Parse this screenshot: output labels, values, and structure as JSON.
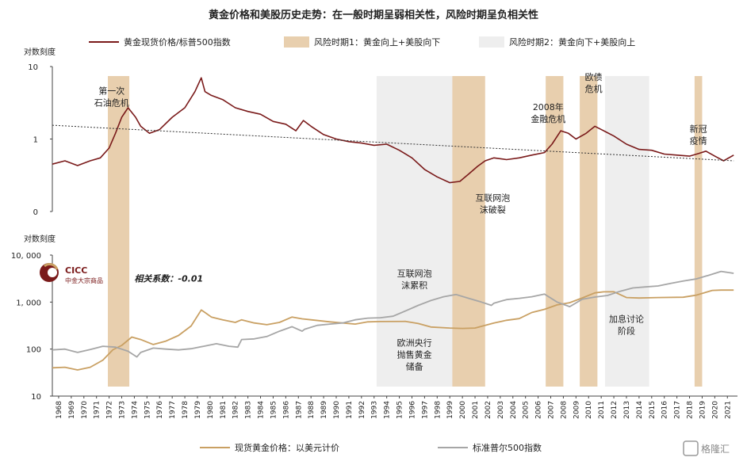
{
  "title": "黄金价格和美股历史走势：在一般时期呈弱相关性，风险时期呈负相关性",
  "watermark": "格隆汇",
  "logo": {
    "text": "CICC",
    "subtext": "中金大宗商品"
  },
  "colors": {
    "ratio": "#7a1a1a",
    "gold": "#c9a063",
    "sp500": "#a6a6a6",
    "period1": "#e8cfae",
    "period2": "#eeeeee",
    "trend": "#333333"
  },
  "legend_top": {
    "ratio": "黄金现货价格/标普500指数",
    "period1": "风险时期1：黄金向上+美股向下",
    "period2": "风险时期2：黄金向下+美股向上"
  },
  "legend_bottom": {
    "gold": "现货黄金价格：以美元计价",
    "sp500": "标准普尔500指数"
  },
  "chart_data": [
    {
      "type": "line",
      "panel": "top",
      "ylabel": "对数刻度",
      "yscale": "log",
      "ylim": [
        0.1,
        10
      ],
      "yticks": [
        {
          "v": 10,
          "label": "10"
        },
        {
          "v": 1,
          "label": "1"
        },
        {
          "v": 0.1,
          "label": "0"
        }
      ],
      "xlim": [
        1968,
        2022.3
      ],
      "series": [
        {
          "name": "黄金现货价格/标普500指数",
          "x": [
            1968,
            1969,
            1970,
            1971,
            1971.8,
            1972.5,
            1973,
            1973.5,
            1974,
            1974.6,
            1975,
            1975.7,
            1976.5,
            1977.5,
            1978.5,
            1979.3,
            1979.8,
            1980.1,
            1980.6,
            1981.5,
            1982.5,
            1983.5,
            1984.5,
            1985.5,
            1986.5,
            1987.3,
            1987.9,
            1988.5,
            1989.5,
            1990.5,
            1991.5,
            1992.5,
            1993.5,
            1994.5,
            1995.5,
            1996.5,
            1997.5,
            1998.5,
            1999.5,
            2000.3,
            2001,
            2001.7,
            2002.3,
            2003,
            2004,
            2005,
            2006,
            2007,
            2007.6,
            2008.3,
            2008.9,
            2009.5,
            2010.3,
            2011,
            2011.7,
            2012.5,
            2013.5,
            2014.5,
            2015.5,
            2016.5,
            2017.5,
            2018.5,
            2019.2,
            2019.8,
            2020.5,
            2021.2,
            2022
          ],
          "y": [
            0.45,
            0.5,
            0.43,
            0.5,
            0.55,
            0.75,
            1.2,
            2.0,
            2.7,
            2.0,
            1.5,
            1.2,
            1.35,
            2.0,
            2.7,
            4.5,
            7.0,
            4.5,
            4.0,
            3.5,
            2.7,
            2.4,
            2.2,
            1.75,
            1.6,
            1.3,
            1.8,
            1.5,
            1.15,
            1.0,
            0.92,
            0.88,
            0.82,
            0.85,
            0.7,
            0.55,
            0.38,
            0.3,
            0.25,
            0.26,
            0.33,
            0.42,
            0.5,
            0.55,
            0.52,
            0.55,
            0.6,
            0.65,
            0.85,
            1.3,
            1.2,
            1.0,
            1.2,
            1.5,
            1.3,
            1.1,
            0.85,
            0.72,
            0.7,
            0.62,
            0.6,
            0.58,
            0.63,
            0.68,
            0.58,
            0.5,
            0.6
          ]
        },
        {
          "name": "trend",
          "x": [
            1968,
            2022
          ],
          "y": [
            1.55,
            0.5
          ]
        }
      ],
      "annotations": [
        {
          "lines": [
            "第一次",
            "石油危机"
          ],
          "x": 1972.7,
          "y": 4.2
        },
        {
          "lines": [
            "2008年",
            "金融危机"
          ],
          "x": 2007.3,
          "y": 2.5
        },
        {
          "lines": [
            "欧债",
            "危机"
          ],
          "x": 2010.9,
          "y": 6.5
        },
        {
          "lines": [
            "新冠",
            "疫情"
          ],
          "x": 2019.2,
          "y": 1.25
        },
        {
          "lines": [
            "互联网泡",
            "沫破裂"
          ],
          "x": 2002.9,
          "y": 0.14
        }
      ]
    },
    {
      "type": "line",
      "panel": "bottom",
      "ylabel": "对数刻度",
      "yscale": "log",
      "ylim": [
        10,
        10000
      ],
      "yticks": [
        {
          "v": 10000,
          "label": "10, 000"
        },
        {
          "v": 1000,
          "label": "1, 000"
        },
        {
          "v": 100,
          "label": "100"
        },
        {
          "v": 10,
          "label": "10"
        }
      ],
      "xlim": [
        1968,
        2022.3
      ],
      "x_tick_labels": [
        "1968",
        "1969",
        "1970",
        "1971",
        "1972",
        "1973",
        "1974",
        "1975",
        "1976",
        "1977",
        "1978",
        "1979",
        "1980",
        "1981",
        "1982",
        "1983",
        "1984",
        "1985",
        "1986",
        "1987",
        "1988",
        "1989",
        "1990",
        "1991",
        "1992",
        "1993",
        "1994",
        "1995",
        "1996",
        "1997",
        "1998",
        "1999",
        "2000",
        "2001",
        "2002",
        "2003",
        "2004",
        "2005",
        "2006",
        "2007",
        "2008",
        "2009",
        "2010",
        "2011",
        "2012",
        "2013",
        "2014",
        "2015",
        "2016",
        "2017",
        "2018",
        "2019",
        "2020",
        "2021"
      ],
      "series": [
        {
          "name": "现货黄金价格：以美元计价",
          "x": [
            1968,
            1969,
            1970,
            1971,
            1972,
            1972.8,
            1973.5,
            1974.3,
            1975,
            1976,
            1977,
            1978,
            1979,
            1979.8,
            1980.1,
            1980.6,
            1981.5,
            1982.5,
            1983,
            1984,
            1985,
            1986,
            1987,
            1987.8,
            1988.5,
            1990,
            1992,
            1993,
            1994,
            1996,
            1997,
            1998,
            1999.5,
            2000.5,
            2001.5,
            2003,
            2004,
            2005,
            2006,
            2007,
            2008,
            2009,
            2010,
            2011,
            2011.7,
            2012.5,
            2013.5,
            2014.5,
            2016,
            2018,
            2019,
            2020.3,
            2021,
            2022
          ],
          "y": [
            40,
            41,
            36,
            41,
            58,
            97,
            120,
            180,
            160,
            125,
            148,
            195,
            310,
            680,
            600,
            480,
            420,
            370,
            420,
            360,
            330,
            370,
            480,
            440,
            420,
            380,
            340,
            380,
            385,
            388,
            350,
            295,
            280,
            275,
            280,
            360,
            410,
            445,
            600,
            700,
            870,
            970,
            1225,
            1570,
            1650,
            1660,
            1250,
            1220,
            1250,
            1270,
            1400,
            1770,
            1800,
            1800
          ]
        },
        {
          "name": "标准普尔500指数",
          "x": [
            1968,
            1969,
            1970,
            1971,
            1972,
            1973,
            1974,
            1974.7,
            1975,
            1976,
            1977,
            1978,
            1979,
            1980,
            1981,
            1982,
            1982.7,
            1983,
            1984,
            1985,
            1986,
            1987,
            1987.8,
            1988,
            1989,
            1990,
            1991,
            1992,
            1993,
            1994,
            1995,
            1996,
            1997,
            1998,
            1999,
            2000,
            2001,
            2002,
            2002.8,
            2003,
            2004,
            2005,
            2006,
            2007,
            2008,
            2009,
            2010,
            2011,
            2012,
            2013,
            2014,
            2015,
            2016,
            2017,
            2018,
            2019,
            2020,
            2021,
            2022
          ],
          "y": [
            96,
            100,
            85,
            98,
            115,
            110,
            90,
            68,
            85,
            105,
            100,
            96,
            102,
            115,
            130,
            115,
            110,
            160,
            165,
            185,
            240,
            300,
            240,
            265,
            320,
            340,
            360,
            420,
            455,
            465,
            500,
            650,
            850,
            1080,
            1300,
            1450,
            1200,
            1000,
            850,
            950,
            1130,
            1200,
            1300,
            1480,
            1000,
            800,
            1150,
            1280,
            1380,
            1700,
            2000,
            2100,
            2200,
            2500,
            2800,
            3100,
            3700,
            4500,
            4100
          ]
        }
      ],
      "annotations": [
        {
          "lines": [
            "相关系数：-0.01"
          ],
          "x": 1974.5,
          "y": 2700,
          "style": "italic-bold"
        },
        {
          "lines": [
            "互联网泡",
            "沫累积"
          ],
          "x": 1996.7,
          "y": 3500
        },
        {
          "lines": [
            "欧洲央行",
            "抛售黄金",
            "储备"
          ],
          "x": 1996.7,
          "y": 118
        },
        {
          "lines": [
            "加息讨论",
            "阶段"
          ],
          "x": 2013.5,
          "y": 380
        }
      ]
    }
  ],
  "shaded_periods": {
    "period1": [
      [
        1972.4,
        1974.1
      ],
      [
        1999.7,
        2002.3
      ],
      [
        2007.1,
        2008.5
      ],
      [
        2009.8,
        2011.2
      ],
      [
        2018.9,
        2019.5
      ]
    ],
    "period2": [
      [
        1993.7,
        1999.7
      ],
      [
        2011.8,
        2015.3
      ]
    ]
  }
}
